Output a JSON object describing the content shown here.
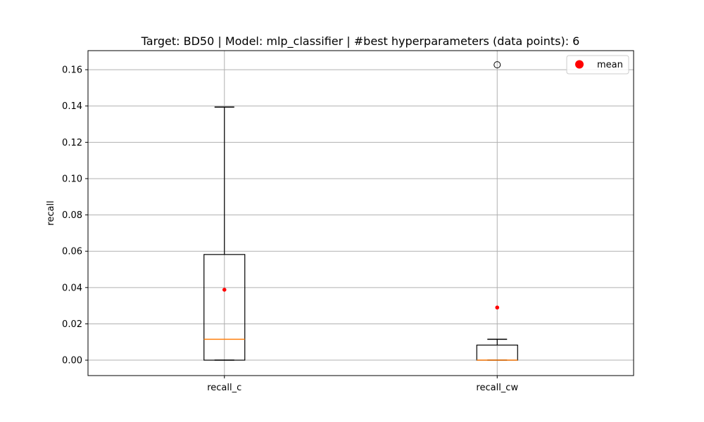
{
  "chart_data": {
    "type": "box",
    "title": "Target: BD50 | Model: mlp_classifier | #best hyperparameters (data points): 6",
    "xlabel": "",
    "ylabel": "recall",
    "ylim": [
      -0.0085,
      0.1705
    ],
    "yticks": [
      "0.00",
      "0.02",
      "0.04",
      "0.06",
      "0.08",
      "0.10",
      "0.12",
      "0.14",
      "0.16"
    ],
    "grid": true,
    "legend": {
      "position": "top-right",
      "entries": [
        {
          "label": "mean",
          "marker": "circle",
          "color": "#ff0000"
        }
      ]
    },
    "categories": [
      "recall_c",
      "recall_cw"
    ],
    "series": [
      {
        "category": "recall_c",
        "whisker_low": 0.0,
        "q1": 0.0,
        "median": 0.0115,
        "q3": 0.0582,
        "whisker_high": 0.1394,
        "mean": 0.0388,
        "outliers": []
      },
      {
        "category": "recall_cw",
        "whisker_low": 0.0,
        "q1": 0.0,
        "median": 0.0,
        "q3": 0.0083,
        "whisker_high": 0.0115,
        "mean": 0.029,
        "outliers": [
          0.1627
        ]
      }
    ],
    "colors": {
      "box": "#000000",
      "median": "#ff7f0e",
      "mean": "#ff0000",
      "grid": "#b0b0b0"
    }
  }
}
